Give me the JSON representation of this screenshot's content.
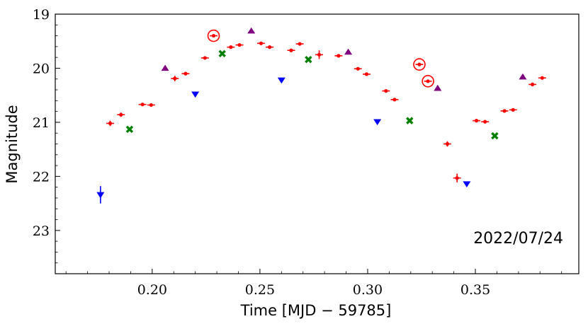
{
  "chart_data": {
    "type": "scatter",
    "title": "",
    "xlabel": "Time [MJD − 59785]",
    "ylabel": "Magnitude",
    "xlim": [
      0.155,
      0.398
    ],
    "ylim": [
      23.8,
      19.0
    ],
    "y_inverted": true,
    "grid": false,
    "x_ticks": [
      0.2,
      0.25,
      0.3,
      0.35
    ],
    "x_tick_labels": [
      "0.20",
      "0.25",
      "0.30",
      "0.35"
    ],
    "y_ticks": [
      19,
      20,
      21,
      22,
      23
    ],
    "y_tick_labels": [
      "19",
      "20",
      "21",
      "22",
      "23"
    ],
    "annotation": "2022/07/24",
    "annotation_position": "bottom-right",
    "series": [
      {
        "name": "red",
        "marker": "dot",
        "color": "#ff0000",
        "points": [
          {
            "x": 0.1805,
            "y": 21.02,
            "xerr": 0.0018,
            "yerr": 0.05
          },
          {
            "x": 0.1855,
            "y": 20.86,
            "xerr": 0.0018,
            "yerr": 0.04
          },
          {
            "x": 0.1955,
            "y": 20.67,
            "xerr": 0.0018,
            "yerr": 0.03
          },
          {
            "x": 0.1995,
            "y": 20.68,
            "xerr": 0.0018,
            "yerr": 0.03
          },
          {
            "x": 0.2105,
            "y": 20.19,
            "xerr": 0.0018,
            "yerr": 0.05
          },
          {
            "x": 0.2155,
            "y": 20.1,
            "xerr": 0.0018,
            "yerr": 0.03
          },
          {
            "x": 0.2245,
            "y": 19.81,
            "xerr": 0.0018,
            "yerr": 0.02
          },
          {
            "x": 0.2285,
            "y": 19.4,
            "xerr": 0.0018,
            "yerr": 0.02
          },
          {
            "x": 0.2365,
            "y": 19.61,
            "xerr": 0.0018,
            "yerr": 0.02
          },
          {
            "x": 0.2405,
            "y": 19.57,
            "xerr": 0.0018,
            "yerr": 0.02
          },
          {
            "x": 0.2505,
            "y": 19.54,
            "xerr": 0.0018,
            "yerr": 0.02
          },
          {
            "x": 0.2545,
            "y": 19.61,
            "xerr": 0.0018,
            "yerr": 0.02
          },
          {
            "x": 0.2645,
            "y": 19.67,
            "xerr": 0.0018,
            "yerr": 0.02
          },
          {
            "x": 0.2685,
            "y": 19.55,
            "xerr": 0.0018,
            "yerr": 0.02
          },
          {
            "x": 0.2775,
            "y": 19.75,
            "xerr": 0.0018,
            "yerr": 0.08
          },
          {
            "x": 0.2865,
            "y": 19.77,
            "xerr": 0.0018,
            "yerr": 0.02
          },
          {
            "x": 0.2955,
            "y": 20.01,
            "xerr": 0.0018,
            "yerr": 0.02
          },
          {
            "x": 0.2995,
            "y": 20.11,
            "xerr": 0.0018,
            "yerr": 0.02
          },
          {
            "x": 0.3085,
            "y": 20.42,
            "xerr": 0.0018,
            "yerr": 0.02
          },
          {
            "x": 0.3125,
            "y": 20.58,
            "xerr": 0.0018,
            "yerr": 0.02
          },
          {
            "x": 0.324,
            "y": 19.93,
            "xerr": 0.0018,
            "yerr": 0.02
          },
          {
            "x": 0.328,
            "y": 20.24,
            "xerr": 0.0018,
            "yerr": 0.02
          },
          {
            "x": 0.337,
            "y": 21.4,
            "xerr": 0.0018,
            "yerr": 0.05
          },
          {
            "x": 0.3415,
            "y": 22.03,
            "xerr": 0.0018,
            "yerr": 0.08
          },
          {
            "x": 0.3505,
            "y": 20.97,
            "xerr": 0.0018,
            "yerr": 0.02
          },
          {
            "x": 0.3545,
            "y": 20.99,
            "xerr": 0.0018,
            "yerr": 0.02
          },
          {
            "x": 0.3635,
            "y": 20.79,
            "xerr": 0.0018,
            "yerr": 0.02
          },
          {
            "x": 0.3675,
            "y": 20.77,
            "xerr": 0.0018,
            "yerr": 0.02
          },
          {
            "x": 0.3765,
            "y": 20.3,
            "xerr": 0.0018,
            "yerr": 0.02
          },
          {
            "x": 0.381,
            "y": 20.18,
            "xerr": 0.0018,
            "yerr": 0.02
          }
        ]
      },
      {
        "name": "blue",
        "marker": "triangle-down",
        "color": "#0000ff",
        "points": [
          {
            "x": 0.176,
            "y": 22.34,
            "yerr": 0.16
          },
          {
            "x": 0.22,
            "y": 20.48,
            "yerr": 0.03
          },
          {
            "x": 0.26,
            "y": 20.22,
            "yerr": 0.03
          },
          {
            "x": 0.3045,
            "y": 20.99,
            "yerr": 0.03
          },
          {
            "x": 0.346,
            "y": 22.14,
            "yerr": 0.04
          }
        ]
      },
      {
        "name": "green",
        "marker": "x-filled",
        "color": "#007f00",
        "points": [
          {
            "x": 0.1895,
            "y": 21.13
          },
          {
            "x": 0.2325,
            "y": 19.73
          },
          {
            "x": 0.2725,
            "y": 19.84
          },
          {
            "x": 0.3195,
            "y": 20.97
          },
          {
            "x": 0.359,
            "y": 21.25
          }
        ]
      },
      {
        "name": "purple",
        "marker": "triangle-up",
        "color": "#7f007f",
        "points": [
          {
            "x": 0.206,
            "y": 20.0
          },
          {
            "x": 0.246,
            "y": 19.31
          },
          {
            "x": 0.291,
            "y": 19.7
          },
          {
            "x": 0.3325,
            "y": 20.37
          },
          {
            "x": 0.372,
            "y": 20.16
          }
        ]
      }
    ],
    "circled_points": [
      {
        "x": 0.2285,
        "y": 19.4
      },
      {
        "x": 0.324,
        "y": 19.93
      },
      {
        "x": 0.328,
        "y": 20.24
      }
    ],
    "circle_color": "#ff0000"
  }
}
